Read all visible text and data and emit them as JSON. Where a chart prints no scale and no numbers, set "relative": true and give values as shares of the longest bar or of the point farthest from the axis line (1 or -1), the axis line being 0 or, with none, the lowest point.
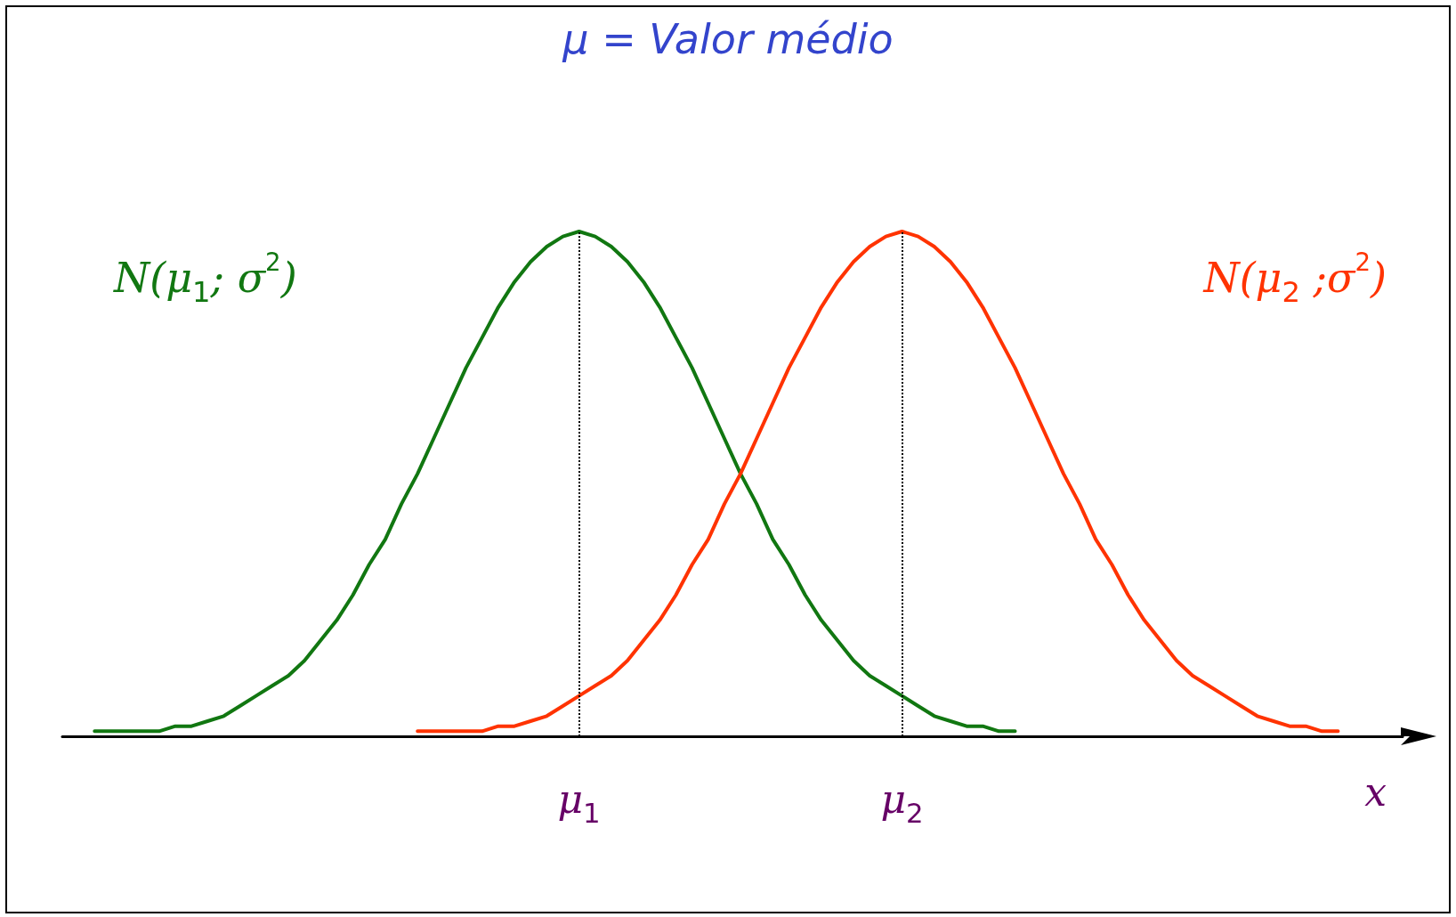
{
  "chart_data": {
    "type": "line",
    "relative": true,
    "title": "μ = Valor médio",
    "xlabel": "x",
    "categories": [
      null,
      null,
      null,
      null,
      null,
      null,
      null,
      null,
      null,
      null,
      null,
      null,
      null,
      null,
      null,
      null,
      null,
      null,
      null,
      null,
      null,
      null,
      null,
      null,
      null,
      null,
      null,
      null,
      null,
      null,
      null,
      null,
      "μ$_{1}$",
      null,
      null,
      null,
      null,
      null,
      null,
      null,
      null,
      null,
      null,
      null,
      null,
      null,
      null,
      null,
      null,
      null,
      null,
      null,
      "μ$_{2}$",
      null,
      null,
      null,
      null,
      null,
      null,
      null,
      null,
      null,
      null,
      null,
      null,
      null,
      null,
      null,
      null,
      null,
      null,
      null,
      null,
      null,
      null,
      null,
      null,
      null,
      null,
      null,
      null,
      null,
      null,
      null
    ],
    "series": [
      {
        "name": "N(μ$_{1}$; σ$^{2}$)",
        "color": "#117711",
        "values": [
          null,
          null,
          0.01,
          0.01,
          0.01,
          0.01,
          0.01,
          0.02,
          0.02,
          0.03,
          0.04,
          0.06,
          0.08,
          0.1,
          0.12,
          0.15,
          0.19,
          0.23,
          0.28,
          0.34,
          0.39,
          0.46,
          0.52,
          0.59,
          0.66,
          0.73,
          0.79,
          0.85,
          0.9,
          0.94,
          0.97,
          0.99,
          1.0,
          0.99,
          0.97,
          0.94,
          0.9,
          0.85,
          0.79,
          0.73,
          0.66,
          0.59,
          0.52,
          0.46,
          0.39,
          0.34,
          0.28,
          0.23,
          0.19,
          0.15,
          0.12,
          0.1,
          0.08,
          0.06,
          0.04,
          0.03,
          0.02,
          0.02,
          0.01,
          0.01,
          null,
          null,
          null,
          null,
          null,
          null,
          null,
          null,
          null,
          null,
          null,
          null,
          null,
          null,
          null,
          null,
          null,
          null,
          null,
          null,
          null,
          null,
          null,
          null
        ]
      },
      {
        "name": "N(μ$_{2}$ ;σ$^{2}$)",
        "color": "#ff3300",
        "values": [
          null,
          null,
          null,
          null,
          null,
          null,
          null,
          null,
          null,
          null,
          null,
          null,
          null,
          null,
          null,
          null,
          null,
          null,
          null,
          null,
          null,
          null,
          0.01,
          0.01,
          0.01,
          0.01,
          0.01,
          0.02,
          0.02,
          0.03,
          0.04,
          0.06,
          0.08,
          0.1,
          0.12,
          0.15,
          0.19,
          0.23,
          0.28,
          0.34,
          0.39,
          0.46,
          0.52,
          0.59,
          0.66,
          0.73,
          0.79,
          0.85,
          0.9,
          0.94,
          0.97,
          0.99,
          1.0,
          0.99,
          0.97,
          0.94,
          0.9,
          0.85,
          0.79,
          0.73,
          0.66,
          0.59,
          0.52,
          0.46,
          0.39,
          0.34,
          0.28,
          0.23,
          0.19,
          0.15,
          0.12,
          0.1,
          0.08,
          0.06,
          0.04,
          0.03,
          0.02,
          0.02,
          0.01,
          0.01,
          null,
          null,
          null,
          null
        ]
      }
    ],
    "ref_lines": [
      {
        "axis": "x",
        "value": "μ$_{1}$",
        "line_style": "dotted",
        "color": "#000000"
      },
      {
        "axis": "x",
        "value": "μ$_{2}$",
        "line_style": "dotted",
        "color": "#000000"
      }
    ],
    "legend": false,
    "grid": false,
    "marker": "none",
    "line_style": "solid",
    "tick_labels": "x"
  }
}
